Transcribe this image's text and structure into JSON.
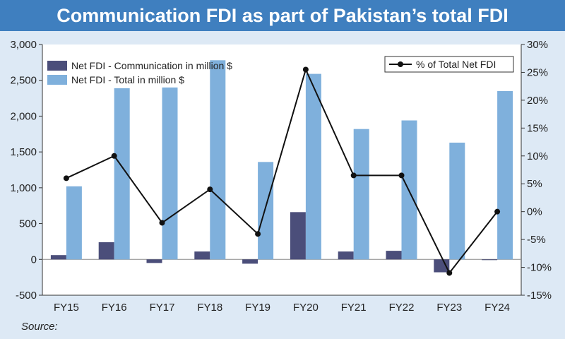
{
  "title": "Communication FDI as part of Pakistan’s total FDI",
  "source_label": "Source:",
  "colors": {
    "title_bg": "#3f7fbf",
    "page_bg": "#dde9f5",
    "communication_bar": "#4b4e7a",
    "total_bar": "#7fb0dc",
    "line": "#111111"
  },
  "chart_data": {
    "type": "bar",
    "categories": [
      "FY15",
      "FY16",
      "FY17",
      "FY18",
      "FY19",
      "FY20",
      "FY21",
      "FY22",
      "FY23",
      "FY24"
    ],
    "series": [
      {
        "name": "Net FDI - Communication in million $",
        "type": "bar",
        "axis": "left",
        "values": [
          60,
          240,
          -50,
          110,
          -60,
          660,
          110,
          120,
          -180,
          -10
        ]
      },
      {
        "name": "Net FDI - Total in million $",
        "type": "bar",
        "axis": "left",
        "values": [
          1020,
          2390,
          2400,
          2780,
          1360,
          2590,
          1820,
          1940,
          1630,
          2350
        ]
      },
      {
        "name": "% of Total Net FDI",
        "type": "line",
        "axis": "right",
        "values": [
          6,
          10,
          -2,
          4,
          -4,
          25.5,
          6.5,
          6.5,
          -11,
          0
        ]
      }
    ],
    "y_left": {
      "ticks": [
        "3,000",
        "2,500",
        "2,000",
        "1,500",
        "1,000",
        "500",
        "0",
        "-500"
      ],
      "range": [
        -500,
        3000
      ]
    },
    "y_right": {
      "ticks": [
        "30%",
        "25%",
        "20%",
        "15%",
        "10%",
        "5%",
        "0%",
        "-5%",
        "-10%",
        "-15%"
      ],
      "range": [
        -15,
        30
      ]
    },
    "legend": {
      "left_placement": "top-left",
      "right_placement": "top-right"
    },
    "grid": false
  }
}
